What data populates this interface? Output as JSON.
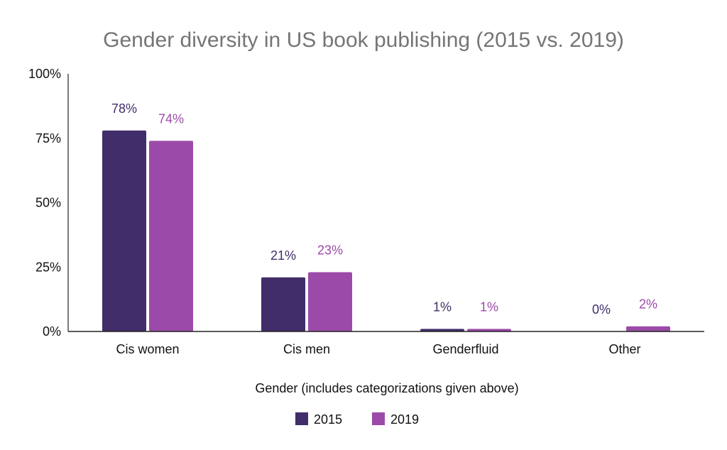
{
  "chart_data": {
    "type": "bar",
    "title": "Gender diversity in US book publishing (2015 vs. 2019)",
    "xlabel": "Gender (includes categorizations given above)",
    "ylabel": "",
    "ylim": [
      0,
      100
    ],
    "yticks": [
      {
        "value": 0,
        "label": "0%"
      },
      {
        "value": 25,
        "label": "25%"
      },
      {
        "value": 50,
        "label": "50%"
      },
      {
        "value": 75,
        "label": "75%"
      },
      {
        "value": 100,
        "label": "100%"
      }
    ],
    "categories": [
      "Cis women",
      "Cis men",
      "Genderfluid",
      "Other"
    ],
    "series": [
      {
        "name": "2015",
        "color": "#412d6a",
        "values": [
          78,
          21,
          1,
          0
        ],
        "labels": [
          "78%",
          "21%",
          "1%",
          "0%"
        ]
      },
      {
        "name": "2019",
        "color": "#9c4aa9",
        "values": [
          74,
          23,
          1,
          2
        ],
        "labels": [
          "74%",
          "23%",
          "1%",
          "2%"
        ]
      }
    ],
    "legend_position": "bottom",
    "grid": false
  }
}
